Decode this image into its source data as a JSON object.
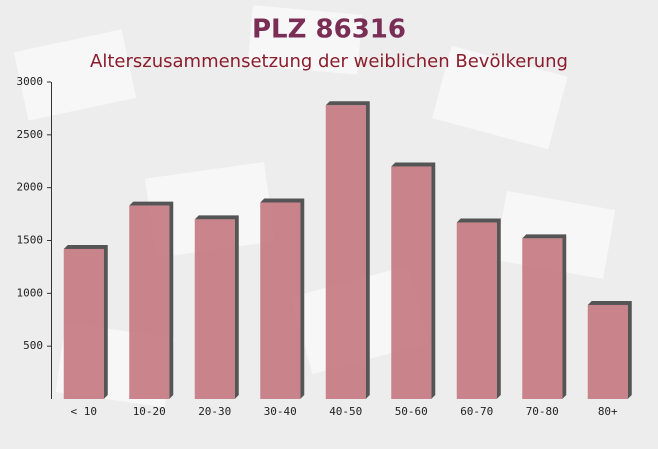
{
  "chart_data": {
    "type": "bar",
    "title": "PLZ 86316",
    "subtitle": "Alterszusammensetzung der weiblichen Bevölkerung",
    "categories": [
      "< 10",
      "10-20",
      "20-30",
      "30-40",
      "40-50",
      "50-60",
      "60-70",
      "70-80",
      "80+"
    ],
    "values": [
      1420,
      1830,
      1700,
      1860,
      2780,
      2200,
      1670,
      1520,
      890
    ],
    "color": "#c27079",
    "ylim": [
      0,
      3000
    ],
    "yticks": [
      500,
      1000,
      1500,
      2000,
      2500,
      3000
    ],
    "grid": false
  }
}
